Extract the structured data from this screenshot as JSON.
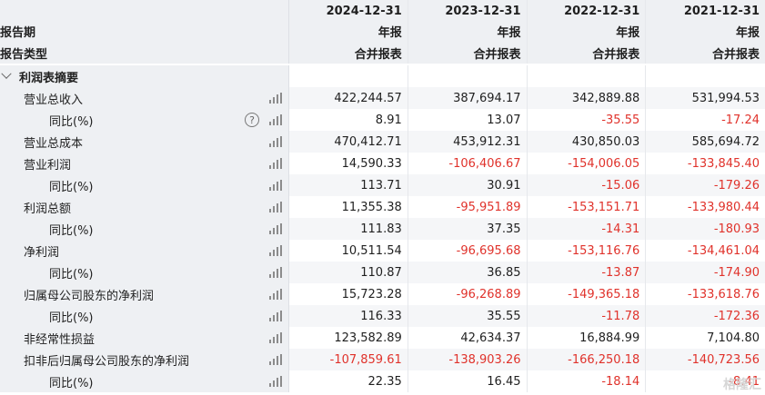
{
  "columns": [
    {
      "date": "2024-12-31",
      "period": "年报",
      "type": "合并报表"
    },
    {
      "date": "2023-12-31",
      "period": "年报",
      "type": "合并报表"
    },
    {
      "date": "2022-12-31",
      "period": "年报",
      "type": "合并报表"
    },
    {
      "date": "2021-12-31",
      "period": "年报",
      "type": "合并报表"
    }
  ],
  "header_labels": {
    "period": "报告期",
    "type": "报告类型"
  },
  "section": {
    "title": "利润表摘要"
  },
  "rows": [
    {
      "label": "营业总收入",
      "values": [
        "422,244.57",
        "387,694.17",
        "342,889.88",
        "531,994.53"
      ]
    },
    {
      "label": "同比(%)",
      "values": [
        "8.91",
        "13.07",
        "-35.55",
        "-17.24"
      ],
      "help": true
    },
    {
      "label": "营业总成本",
      "values": [
        "470,412.71",
        "453,912.31",
        "430,850.03",
        "585,694.72"
      ]
    },
    {
      "label": "营业利润",
      "values": [
        "14,590.33",
        "-106,406.67",
        "-154,006.05",
        "-133,845.40"
      ]
    },
    {
      "label": "同比(%)",
      "values": [
        "113.71",
        "30.91",
        "-15.06",
        "-179.26"
      ]
    },
    {
      "label": "利润总额",
      "values": [
        "11,355.38",
        "-95,951.89",
        "-153,151.71",
        "-133,980.44"
      ]
    },
    {
      "label": "同比(%)",
      "values": [
        "111.83",
        "37.35",
        "-14.31",
        "-180.93"
      ]
    },
    {
      "label": "净利润",
      "values": [
        "10,511.54",
        "-96,695.68",
        "-153,116.76",
        "-134,461.04"
      ]
    },
    {
      "label": "同比(%)",
      "values": [
        "110.87",
        "36.85",
        "-13.87",
        "-174.90"
      ]
    },
    {
      "label": "归属母公司股东的净利润",
      "values": [
        "15,723.28",
        "-96,268.89",
        "-149,365.18",
        "-133,618.76"
      ]
    },
    {
      "label": "同比(%)",
      "values": [
        "116.33",
        "35.55",
        "-11.78",
        "-172.36"
      ]
    },
    {
      "label": "非经常性损益",
      "values": [
        "123,582.89",
        "42,634.37",
        "16,884.99",
        "7,104.80"
      ]
    },
    {
      "label": "扣非后归属母公司股东的净利润",
      "values": [
        "-107,859.61",
        "-138,903.26",
        "-166,250.18",
        "-140,723.56"
      ]
    },
    {
      "label": "同比(%)",
      "values": [
        "22.35",
        "16.45",
        "-18.14",
        "-8.41"
      ]
    }
  ],
  "watermark": "格隆汇",
  "colors": {
    "negative": "#e0322b",
    "label_bg": "#eef0f3"
  }
}
